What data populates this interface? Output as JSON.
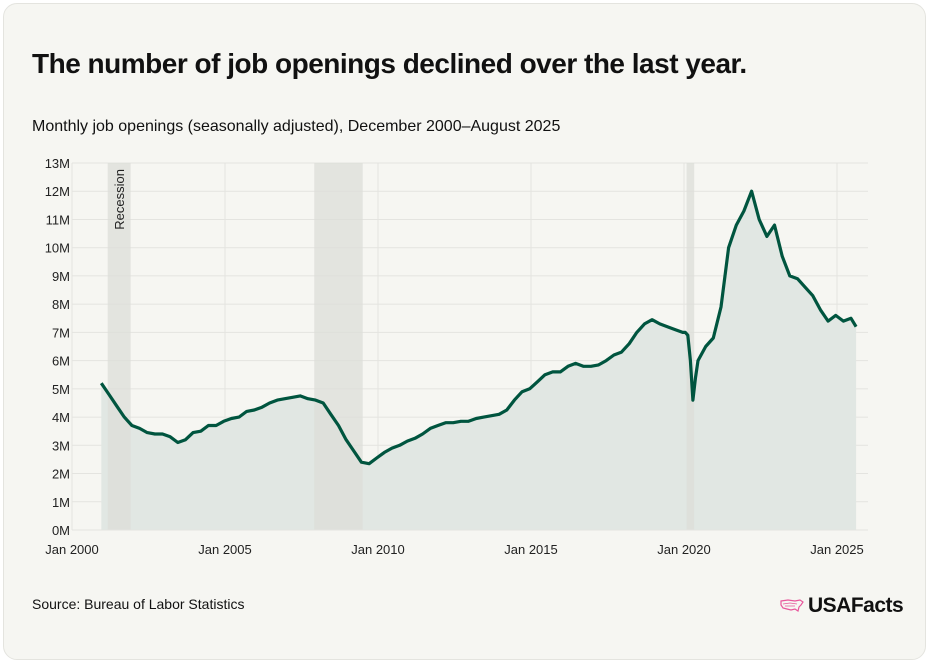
{
  "title": "The number of job openings declined over the last year.",
  "subtitle": "Monthly job openings (seasonally adjusted), December 2000–August 2025",
  "source": "Source: Bureau of Labor Statistics",
  "logo": {
    "text": "USAFacts",
    "icon": "us-map-icon",
    "color": "#e8569b"
  },
  "colors": {
    "line": "#00553f",
    "area": "#e1e7e3",
    "recession": "#dcddd8",
    "grid": "#e4e4e0",
    "background": "#f6f6f2"
  },
  "chart_data": {
    "type": "area",
    "title": "Monthly job openings (seasonally adjusted), December 2000–August 2025",
    "xlabel": "",
    "ylabel": "",
    "ylim": [
      0,
      13
    ],
    "xlim": [
      "2000-01",
      "2026-09"
    ],
    "grid": true,
    "y_unit": "millions",
    "y_ticks": [
      "0M",
      "1M",
      "2M",
      "3M",
      "4M",
      "5M",
      "6M",
      "7M",
      "8M",
      "9M",
      "10M",
      "11M",
      "12M",
      "13M"
    ],
    "x_ticks": [
      {
        "date": "2000-01",
        "label": "Jan 2000"
      },
      {
        "date": "2005-01",
        "label": "Jan 2005"
      },
      {
        "date": "2010-01",
        "label": "Jan 2010"
      },
      {
        "date": "2015-01",
        "label": "Jan 2015"
      },
      {
        "date": "2020-01",
        "label": "Jan 2020"
      },
      {
        "date": "2025-01",
        "label": "Jan 2025"
      }
    ],
    "recessions": [
      {
        "start": "2001-03",
        "end": "2001-11",
        "label": "Recession"
      },
      {
        "start": "2007-12",
        "end": "2009-06",
        "label": ""
      },
      {
        "start": "2020-02",
        "end": "2020-04",
        "label": ""
      }
    ],
    "x": [
      "2000-12",
      "2001-03",
      "2001-06",
      "2001-09",
      "2001-12",
      "2002-03",
      "2002-06",
      "2002-09",
      "2002-12",
      "2003-03",
      "2003-06",
      "2003-09",
      "2003-12",
      "2004-03",
      "2004-06",
      "2004-09",
      "2004-12",
      "2005-03",
      "2005-06",
      "2005-09",
      "2005-12",
      "2006-03",
      "2006-06",
      "2006-09",
      "2006-12",
      "2007-03",
      "2007-06",
      "2007-09",
      "2007-12",
      "2008-03",
      "2008-06",
      "2008-09",
      "2008-12",
      "2009-03",
      "2009-06",
      "2009-09",
      "2009-12",
      "2010-03",
      "2010-06",
      "2010-09",
      "2010-12",
      "2011-03",
      "2011-06",
      "2011-09",
      "2011-12",
      "2012-03",
      "2012-06",
      "2012-09",
      "2012-12",
      "2013-03",
      "2013-06",
      "2013-09",
      "2013-12",
      "2014-03",
      "2014-06",
      "2014-09",
      "2014-12",
      "2015-03",
      "2015-06",
      "2015-09",
      "2015-12",
      "2016-03",
      "2016-06",
      "2016-09",
      "2016-12",
      "2017-03",
      "2017-06",
      "2017-09",
      "2017-12",
      "2018-03",
      "2018-06",
      "2018-09",
      "2018-12",
      "2019-03",
      "2019-06",
      "2019-09",
      "2019-12",
      "2020-01",
      "2020-02",
      "2020-03",
      "2020-04",
      "2020-05",
      "2020-06",
      "2020-09",
      "2020-12",
      "2021-03",
      "2021-06",
      "2021-09",
      "2021-12",
      "2022-03",
      "2022-06",
      "2022-09",
      "2022-12",
      "2023-03",
      "2023-06",
      "2023-09",
      "2023-12",
      "2024-03",
      "2024-06",
      "2024-09",
      "2024-12",
      "2025-03",
      "2025-06",
      "2025-08"
    ],
    "values": [
      5.2,
      4.8,
      4.4,
      4.0,
      3.7,
      3.6,
      3.45,
      3.4,
      3.4,
      3.3,
      3.1,
      3.2,
      3.45,
      3.5,
      3.7,
      3.7,
      3.85,
      3.95,
      4.0,
      4.2,
      4.25,
      4.35,
      4.5,
      4.6,
      4.65,
      4.7,
      4.75,
      4.65,
      4.6,
      4.5,
      4.1,
      3.7,
      3.2,
      2.8,
      2.4,
      2.35,
      2.55,
      2.75,
      2.9,
      3.0,
      3.15,
      3.25,
      3.4,
      3.6,
      3.7,
      3.8,
      3.8,
      3.85,
      3.85,
      3.95,
      4.0,
      4.05,
      4.1,
      4.25,
      4.6,
      4.9,
      5.0,
      5.25,
      5.5,
      5.6,
      5.6,
      5.8,
      5.9,
      5.8,
      5.8,
      5.85,
      6.0,
      6.2,
      6.3,
      6.6,
      7.0,
      7.3,
      7.45,
      7.3,
      7.2,
      7.1,
      7.0,
      7.0,
      6.9,
      6.0,
      4.6,
      5.4,
      6.0,
      6.5,
      6.8,
      7.9,
      10.0,
      10.8,
      11.3,
      12.0,
      11.0,
      10.4,
      10.8,
      9.7,
      9.0,
      8.9,
      8.6,
      8.3,
      7.8,
      7.4,
      7.6,
      7.4,
      7.5,
      7.2
    ]
  }
}
